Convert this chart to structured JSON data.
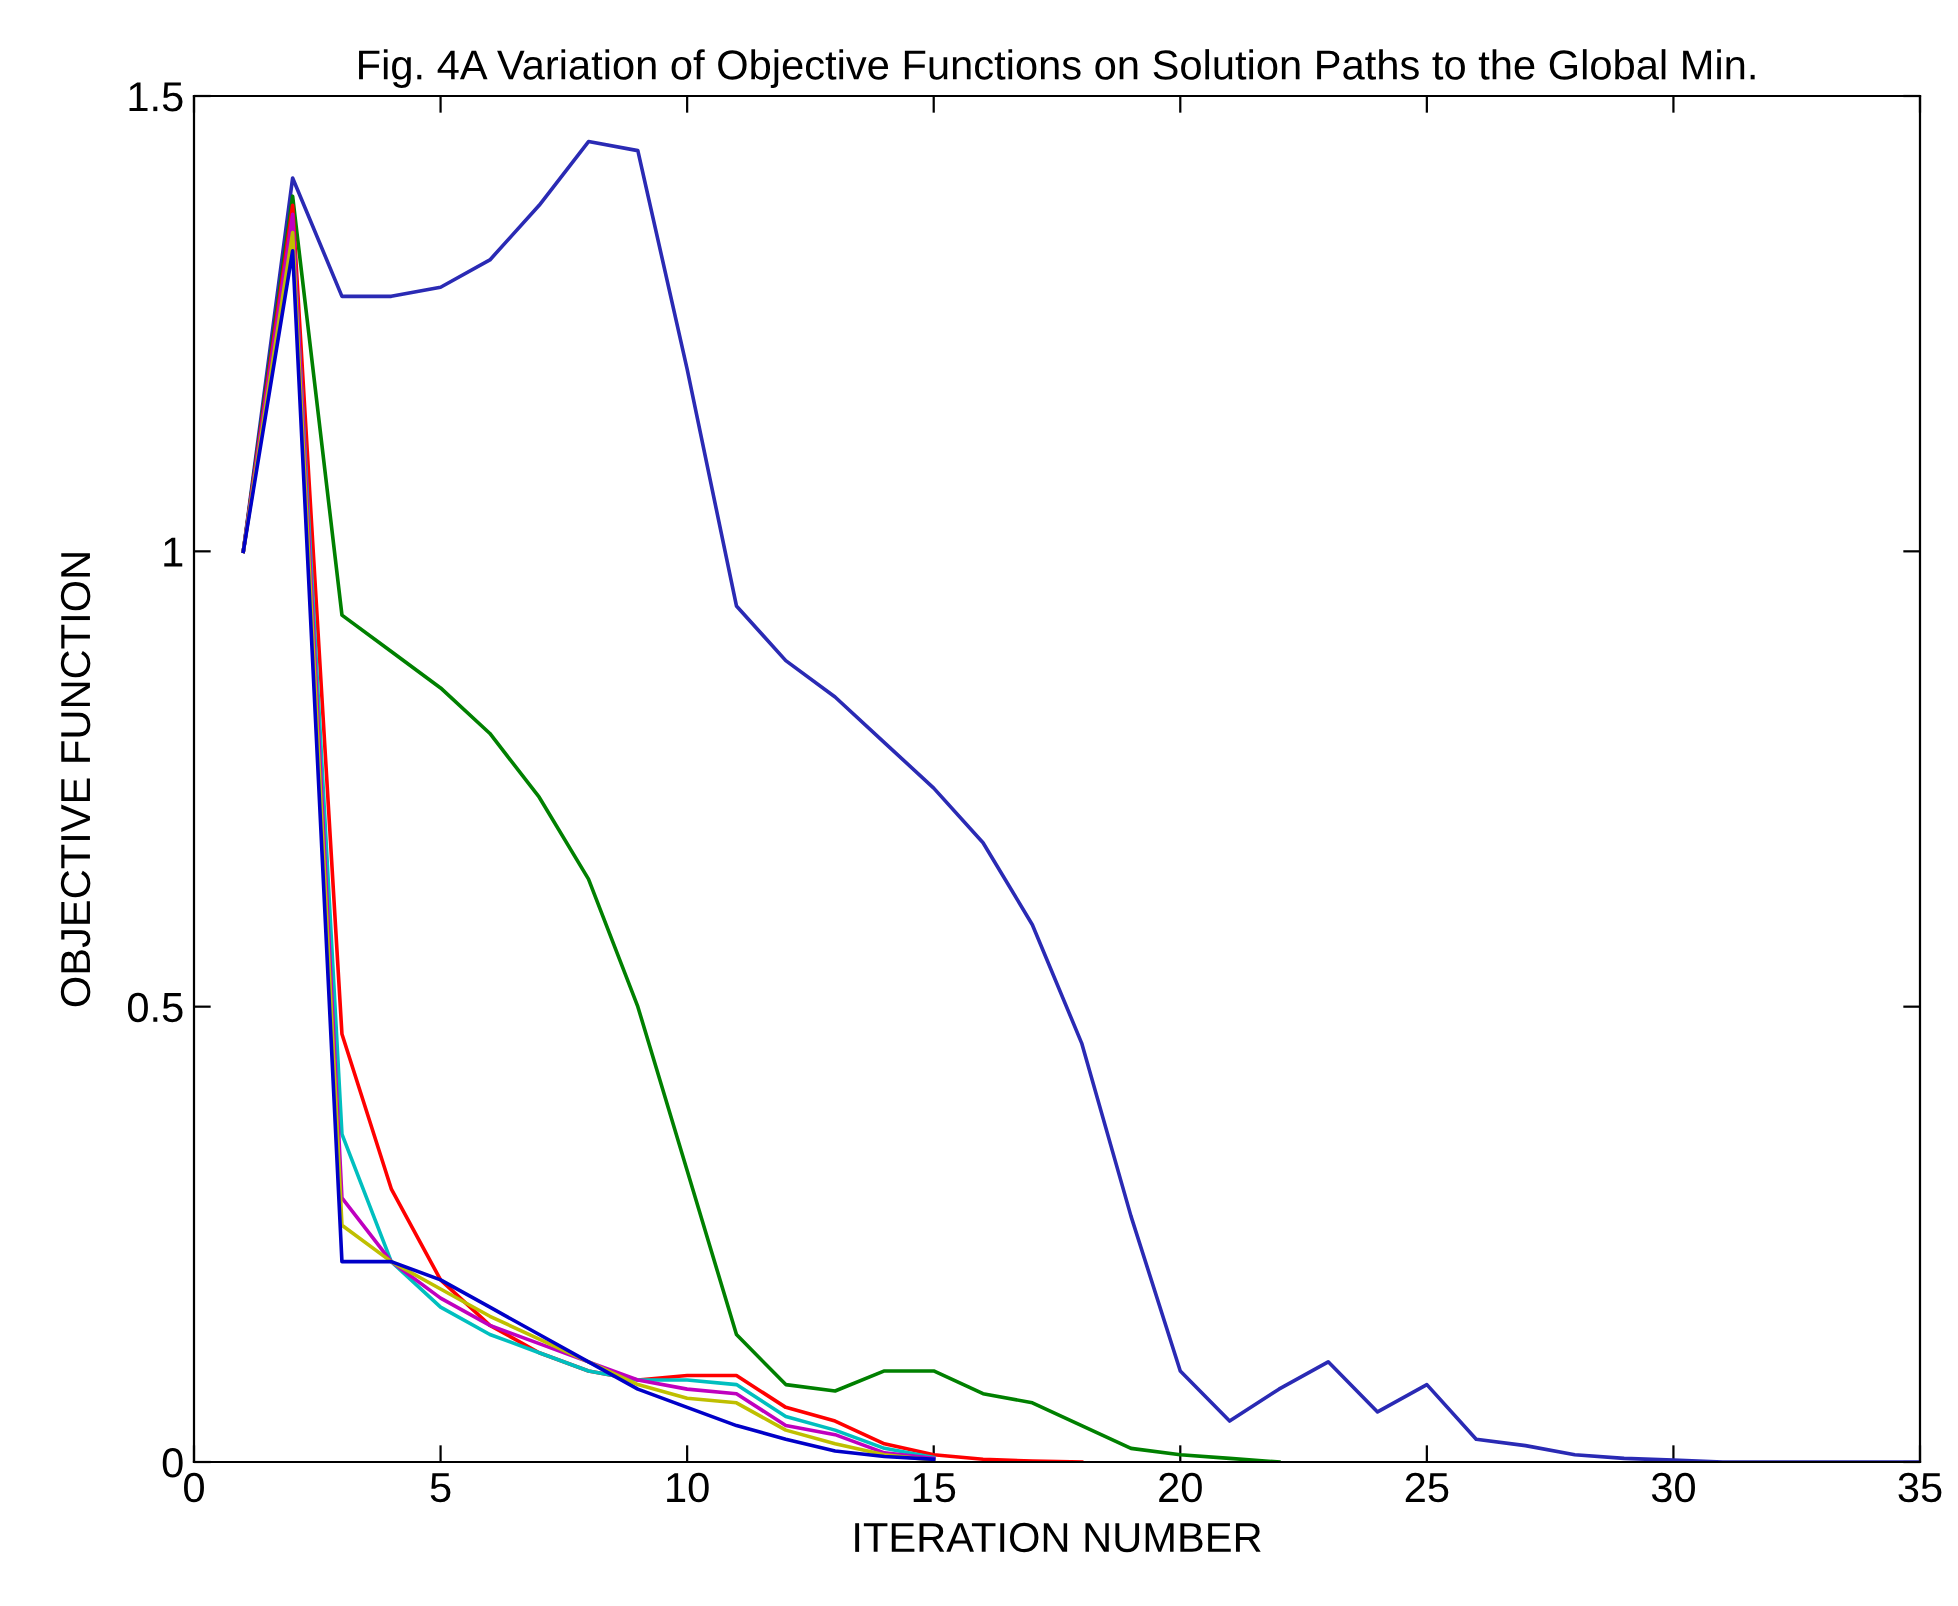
{
  "chart_data": {
    "type": "line",
    "title": "Fig. 4A Variation of Objective Functions on Solution Paths to the Global Min.",
    "xlabel": "ITERATION NUMBER",
    "ylabel": "OBJECTIVE FUNCTION",
    "xlim": [
      0,
      35
    ],
    "ylim": [
      0,
      1.5
    ],
    "xticks": [
      0,
      5,
      10,
      15,
      20,
      25,
      30,
      35
    ],
    "yticks": [
      0,
      {
        "value": 0.5,
        "label": "0.5"
      },
      1,
      {
        "value": 1.5,
        "label": "1.5"
      }
    ],
    "grid": false,
    "legend": false,
    "marker": "none",
    "line_style": "solid",
    "series": [
      {
        "color": "#2a2ab4",
        "x": [
          1,
          2,
          3,
          4,
          5,
          6,
          7,
          8,
          9,
          10,
          11,
          12,
          13,
          14,
          15,
          16,
          17,
          18,
          19,
          20,
          21,
          22,
          23,
          24,
          25,
          26,
          27,
          28,
          29,
          30,
          31,
          32,
          33,
          34,
          35
        ],
        "values": [
          1.0,
          1.41,
          1.28,
          1.28,
          1.29,
          1.32,
          1.38,
          1.45,
          1.44,
          1.2,
          0.94,
          0.88,
          0.84,
          0.79,
          0.74,
          0.68,
          0.59,
          0.46,
          0.27,
          0.1,
          0.045,
          0.08,
          0.11,
          0.055,
          0.085,
          0.025,
          0.018,
          0.008,
          0.004,
          0.002,
          0,
          0,
          0,
          0,
          0
        ]
      },
      {
        "color": "#008000",
        "x": [
          1,
          2,
          3,
          4,
          5,
          6,
          7,
          8,
          9,
          10,
          11,
          12,
          13,
          14,
          15,
          16,
          17,
          18,
          19,
          20,
          21,
          22
        ],
        "values": [
          1.0,
          1.39,
          0.93,
          0.89,
          0.85,
          0.8,
          0.73,
          0.64,
          0.5,
          0.32,
          0.14,
          0.085,
          0.078,
          0.1,
          0.1,
          0.075,
          0.065,
          0.04,
          0.015,
          0.008,
          0.004,
          0
        ]
      },
      {
        "color": "#ff0000",
        "x": [
          1,
          2,
          3,
          4,
          5,
          6,
          7,
          8,
          9,
          10,
          11,
          12,
          13,
          14,
          15,
          16,
          17,
          18
        ],
        "values": [
          1.0,
          1.38,
          0.47,
          0.3,
          0.2,
          0.15,
          0.12,
          0.1,
          0.09,
          0.095,
          0.095,
          0.06,
          0.045,
          0.02,
          0.008,
          0.003,
          0.001,
          0
        ]
      },
      {
        "color": "#00bfbf",
        "x": [
          1,
          2,
          3,
          4,
          5,
          6,
          7,
          8,
          9,
          10,
          11,
          12,
          13,
          14,
          15
        ],
        "values": [
          1.0,
          1.36,
          0.36,
          0.22,
          0.17,
          0.14,
          0.12,
          0.1,
          0.09,
          0.09,
          0.085,
          0.05,
          0.035,
          0.015,
          0.005
        ]
      },
      {
        "color": "#bf00bf",
        "x": [
          1,
          2,
          3,
          4,
          5,
          6,
          7,
          8,
          9,
          10,
          11,
          12,
          13,
          14,
          15
        ],
        "values": [
          1.0,
          1.37,
          0.29,
          0.22,
          0.18,
          0.15,
          0.13,
          0.11,
          0.09,
          0.08,
          0.075,
          0.04,
          0.03,
          0.01,
          0.004
        ]
      },
      {
        "color": "#bfbf00",
        "x": [
          1,
          2,
          3,
          4,
          5,
          6,
          7,
          8,
          9,
          10,
          11,
          12,
          13,
          14,
          15
        ],
        "values": [
          1.0,
          1.35,
          0.26,
          0.22,
          0.19,
          0.16,
          0.135,
          0.11,
          0.085,
          0.07,
          0.065,
          0.035,
          0.02,
          0.008,
          0.002
        ]
      },
      {
        "color": "#0000c8",
        "x": [
          1,
          2,
          3,
          4,
          5,
          6,
          7,
          8,
          9,
          10,
          11,
          12,
          13,
          14,
          15
        ],
        "values": [
          1.0,
          1.33,
          0.22,
          0.22,
          0.2,
          0.17,
          0.14,
          0.11,
          0.08,
          0.06,
          0.04,
          0.025,
          0.012,
          0.006,
          0.003
        ]
      }
    ]
  }
}
